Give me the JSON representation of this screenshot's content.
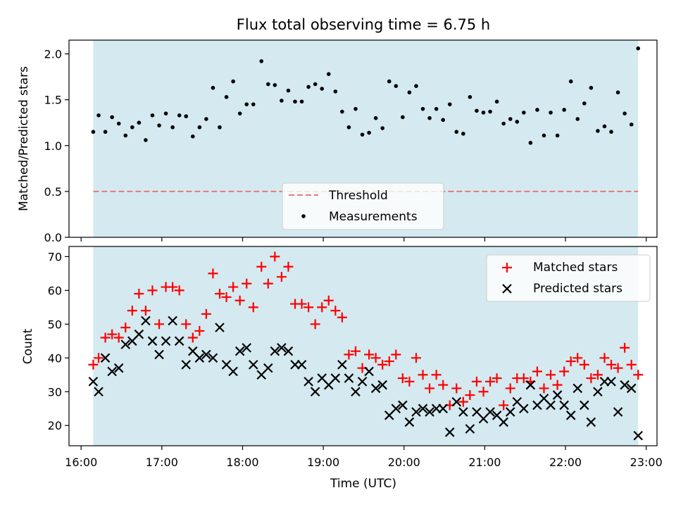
{
  "chart_data": [
    {
      "type": "scatter",
      "title": "Flux total observing time = 6.75 h",
      "xlabel": "",
      "ylabel": "Matched/Predicted stars",
      "x_unit": "hours UTC",
      "xlim": [
        "15:51",
        "23:08"
      ],
      "ylim": [
        0,
        2.15
      ],
      "yticks": [
        0.0,
        0.5,
        1.0,
        1.5,
        2.0
      ],
      "ytick_labels": [
        "0.0",
        "0.5",
        "1.0",
        "1.5",
        "2.0"
      ],
      "observing_window": {
        "start": "16:09",
        "end": "22:54",
        "color": "#d4eaf0"
      },
      "threshold": {
        "name": "Threshold",
        "value": 0.5,
        "color": "#e8787a",
        "style": "dashed"
      },
      "legend": {
        "placement": "lower center",
        "entries": [
          "Threshold",
          "Measurements"
        ]
      },
      "grid": false,
      "series": [
        {
          "name": "Measurements",
          "marker": "dot",
          "color": "#000000",
          "points": [
            [
              "16:09",
              1.15
            ],
            [
              "16:13",
              1.33
            ],
            [
              "16:18",
              1.15
            ],
            [
              "16:23",
              1.31
            ],
            [
              "16:28",
              1.24
            ],
            [
              "16:33",
              1.11
            ],
            [
              "16:38",
              1.2
            ],
            [
              "16:43",
              1.25
            ],
            [
              "16:48",
              1.06
            ],
            [
              "16:53",
              1.33
            ],
            [
              "16:58",
              1.22
            ],
            [
              "17:03",
              1.35
            ],
            [
              "17:08",
              1.2
            ],
            [
              "17:13",
              1.33
            ],
            [
              "17:18",
              1.32
            ],
            [
              "17:23",
              1.1
            ],
            [
              "17:28",
              1.2
            ],
            [
              "17:33",
              1.29
            ],
            [
              "17:38",
              1.63
            ],
            [
              "17:43",
              1.2
            ],
            [
              "17:48",
              1.53
            ],
            [
              "17:53",
              1.7
            ],
            [
              "17:58",
              1.35
            ],
            [
              "18:03",
              1.45
            ],
            [
              "18:08",
              1.45
            ],
            [
              "18:14",
              1.92
            ],
            [
              "18:19",
              1.67
            ],
            [
              "18:24",
              1.66
            ],
            [
              "18:29",
              1.49
            ],
            [
              "18:34",
              1.6
            ],
            [
              "18:39",
              1.48
            ],
            [
              "18:44",
              1.48
            ],
            [
              "18:49",
              1.64
            ],
            [
              "18:54",
              1.67
            ],
            [
              "18:59",
              1.62
            ],
            [
              "19:04",
              1.78
            ],
            [
              "19:09",
              1.59
            ],
            [
              "19:14",
              1.37
            ],
            [
              "19:19",
              1.2
            ],
            [
              "19:24",
              1.4
            ],
            [
              "19:29",
              1.12
            ],
            [
              "19:34",
              1.14
            ],
            [
              "19:39",
              1.3
            ],
            [
              "19:44",
              1.19
            ],
            [
              "19:49",
              1.7
            ],
            [
              "19:54",
              1.65
            ],
            [
              "19:59",
              1.31
            ],
            [
              "20:04",
              1.58
            ],
            [
              "20:09",
              1.65
            ],
            [
              "20:14",
              1.4
            ],
            [
              "20:19",
              1.3
            ],
            [
              "20:24",
              1.4
            ],
            [
              "20:29",
              1.28
            ],
            [
              "20:34",
              1.45
            ],
            [
              "20:39",
              1.15
            ],
            [
              "20:44",
              1.13
            ],
            [
              "20:49",
              1.53
            ],
            [
              "20:54",
              1.38
            ],
            [
              "20:59",
              1.36
            ],
            [
              "21:04",
              1.37
            ],
            [
              "21:09",
              1.48
            ],
            [
              "21:14",
              1.24
            ],
            [
              "21:19",
              1.29
            ],
            [
              "21:24",
              1.26
            ],
            [
              "21:29",
              1.36
            ],
            [
              "21:34",
              1.03
            ],
            [
              "21:39",
              1.39
            ],
            [
              "21:44",
              1.11
            ],
            [
              "21:49",
              1.36
            ],
            [
              "21:54",
              1.11
            ],
            [
              "21:59",
              1.39
            ],
            [
              "22:04",
              1.7
            ],
            [
              "22:09",
              1.29
            ],
            [
              "22:14",
              1.46
            ],
            [
              "22:19",
              1.63
            ],
            [
              "22:24",
              1.16
            ],
            [
              "22:29",
              1.21
            ],
            [
              "22:34",
              1.15
            ],
            [
              "22:39",
              1.58
            ],
            [
              "22:44",
              1.35
            ],
            [
              "22:49",
              1.23
            ],
            [
              "22:54",
              2.06
            ]
          ]
        }
      ]
    },
    {
      "type": "scatter",
      "title": "",
      "xlabel": "Time (UTC)",
      "ylabel": "Count",
      "x_unit": "hours UTC",
      "xlim": [
        "15:51",
        "23:08"
      ],
      "ylim": [
        14,
        73
      ],
      "yticks": [
        20,
        30,
        40,
        50,
        60,
        70
      ],
      "ytick_labels": [
        "20",
        "30",
        "40",
        "50",
        "60",
        "70"
      ],
      "xticks": [
        "16:00",
        "17:00",
        "18:00",
        "19:00",
        "20:00",
        "21:00",
        "22:00",
        "23:00"
      ],
      "xtick_labels": [
        "16:00",
        "17:00",
        "18:00",
        "19:00",
        "20:00",
        "21:00",
        "22:00",
        "23:00"
      ],
      "observing_window": {
        "start": "16:09",
        "end": "22:54",
        "color": "#d4eaf0"
      },
      "legend": {
        "placement": "upper right",
        "entries": [
          "Matched stars",
          "Predicted stars"
        ]
      },
      "grid": false,
      "series": [
        {
          "name": "Matched stars",
          "marker": "plus",
          "color": "#ff0000",
          "points": [
            [
              "16:09",
              38
            ],
            [
              "16:13",
              40
            ],
            [
              "16:18",
              46
            ],
            [
              "16:23",
              47
            ],
            [
              "16:28",
              46
            ],
            [
              "16:33",
              49
            ],
            [
              "16:38",
              54
            ],
            [
              "16:43",
              59
            ],
            [
              "16:48",
              54
            ],
            [
              "16:53",
              60
            ],
            [
              "16:58",
              50
            ],
            [
              "17:03",
              61
            ],
            [
              "17:08",
              61
            ],
            [
              "17:13",
              60
            ],
            [
              "17:18",
              50
            ],
            [
              "17:23",
              46
            ],
            [
              "17:28",
              48
            ],
            [
              "17:33",
              53
            ],
            [
              "17:38",
              65
            ],
            [
              "17:43",
              59
            ],
            [
              "17:48",
              58
            ],
            [
              "17:53",
              61
            ],
            [
              "17:58",
              57
            ],
            [
              "18:03",
              62
            ],
            [
              "18:08",
              55
            ],
            [
              "18:14",
              67
            ],
            [
              "18:19",
              62
            ],
            [
              "18:24",
              70
            ],
            [
              "18:29",
              64
            ],
            [
              "18:34",
              67
            ],
            [
              "18:39",
              56
            ],
            [
              "18:44",
              56
            ],
            [
              "18:49",
              55
            ],
            [
              "18:54",
              50
            ],
            [
              "18:59",
              55
            ],
            [
              "19:04",
              57
            ],
            [
              "19:09",
              54
            ],
            [
              "19:14",
              52
            ],
            [
              "19:19",
              41
            ],
            [
              "19:24",
              42
            ],
            [
              "19:29",
              37
            ],
            [
              "19:34",
              41
            ],
            [
              "19:39",
              40
            ],
            [
              "19:44",
              38
            ],
            [
              "19:49",
              39
            ],
            [
              "19:54",
              41
            ],
            [
              "19:59",
              34
            ],
            [
              "20:04",
              33
            ],
            [
              "20:09",
              40
            ],
            [
              "20:14",
              35
            ],
            [
              "20:19",
              31
            ],
            [
              "20:24",
              35
            ],
            [
              "20:29",
              32
            ],
            [
              "20:34",
              26
            ],
            [
              "20:39",
              31
            ],
            [
              "20:44",
              27
            ],
            [
              "20:49",
              29
            ],
            [
              "20:54",
              33
            ],
            [
              "20:59",
              30
            ],
            [
              "21:04",
              33
            ],
            [
              "21:09",
              34
            ],
            [
              "21:14",
              26
            ],
            [
              "21:19",
              31
            ],
            [
              "21:24",
              34
            ],
            [
              "21:29",
              34
            ],
            [
              "21:34",
              33
            ],
            [
              "21:39",
              36
            ],
            [
              "21:44",
              31
            ],
            [
              "21:49",
              35
            ],
            [
              "21:54",
              32
            ],
            [
              "21:59",
              36
            ],
            [
              "22:04",
              39
            ],
            [
              "22:09",
              40
            ],
            [
              "22:14",
              38
            ],
            [
              "22:19",
              34
            ],
            [
              "22:24",
              35
            ],
            [
              "22:29",
              40
            ],
            [
              "22:34",
              38
            ],
            [
              "22:39",
              37
            ],
            [
              "22:44",
              43
            ],
            [
              "22:49",
              38
            ],
            [
              "22:54",
              35
            ]
          ]
        },
        {
          "name": "Predicted stars",
          "marker": "x",
          "color": "#000000",
          "points": [
            [
              "16:09",
              33
            ],
            [
              "16:13",
              30
            ],
            [
              "16:18",
              40
            ],
            [
              "16:23",
              36
            ],
            [
              "16:28",
              37
            ],
            [
              "16:33",
              44
            ],
            [
              "16:38",
              45
            ],
            [
              "16:43",
              47
            ],
            [
              "16:48",
              51
            ],
            [
              "16:53",
              45
            ],
            [
              "16:58",
              41
            ],
            [
              "17:03",
              45
            ],
            [
              "17:08",
              51
            ],
            [
              "17:13",
              45
            ],
            [
              "17:18",
              38
            ],
            [
              "17:23",
              42
            ],
            [
              "17:28",
              40
            ],
            [
              "17:33",
              41
            ],
            [
              "17:38",
              40
            ],
            [
              "17:43",
              49
            ],
            [
              "17:48",
              38
            ],
            [
              "17:53",
              36
            ],
            [
              "17:58",
              42
            ],
            [
              "18:03",
              43
            ],
            [
              "18:08",
              38
            ],
            [
              "18:14",
              35
            ],
            [
              "18:19",
              37
            ],
            [
              "18:24",
              42
            ],
            [
              "18:29",
              43
            ],
            [
              "18:34",
              42
            ],
            [
              "18:39",
              38
            ],
            [
              "18:44",
              38
            ],
            [
              "18:49",
              33
            ],
            [
              "18:54",
              30
            ],
            [
              "18:59",
              34
            ],
            [
              "19:04",
              32
            ],
            [
              "19:09",
              34
            ],
            [
              "19:14",
              38
            ],
            [
              "19:19",
              34
            ],
            [
              "19:24",
              30
            ],
            [
              "19:29",
              33
            ],
            [
              "19:34",
              36
            ],
            [
              "19:39",
              31
            ],
            [
              "19:44",
              32
            ],
            [
              "19:49",
              23
            ],
            [
              "19:54",
              25
            ],
            [
              "19:59",
              26
            ],
            [
              "20:04",
              21
            ],
            [
              "20:09",
              24
            ],
            [
              "20:14",
              25
            ],
            [
              "20:19",
              24
            ],
            [
              "20:24",
              25
            ],
            [
              "20:29",
              25
            ],
            [
              "20:34",
              18
            ],
            [
              "20:39",
              27
            ],
            [
              "20:44",
              24
            ],
            [
              "20:49",
              19
            ],
            [
              "20:54",
              24
            ],
            [
              "20:59",
              22
            ],
            [
              "21:04",
              24
            ],
            [
              "21:09",
              23
            ],
            [
              "21:14",
              21
            ],
            [
              "21:19",
              24
            ],
            [
              "21:24",
              27
            ],
            [
              "21:29",
              25
            ],
            [
              "21:34",
              32
            ],
            [
              "21:39",
              26
            ],
            [
              "21:44",
              28
            ],
            [
              "21:49",
              26
            ],
            [
              "21:54",
              29
            ],
            [
              "21:59",
              26
            ],
            [
              "22:04",
              23
            ],
            [
              "22:09",
              31
            ],
            [
              "22:14",
              26
            ],
            [
              "22:19",
              21
            ],
            [
              "22:24",
              30
            ],
            [
              "22:29",
              33
            ],
            [
              "22:34",
              33
            ],
            [
              "22:39",
              24
            ],
            [
              "22:44",
              32
            ],
            [
              "22:49",
              31
            ],
            [
              "22:54",
              17
            ]
          ]
        }
      ]
    }
  ]
}
